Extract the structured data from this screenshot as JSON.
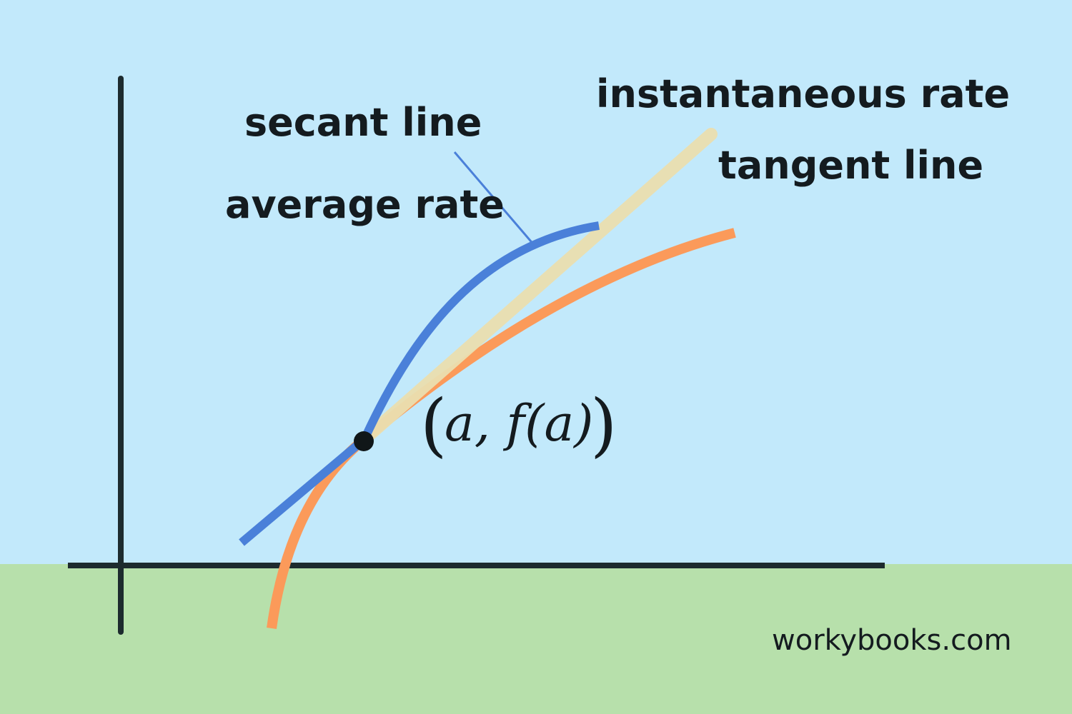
{
  "labels": {
    "secant": "secant line",
    "average": "average rate",
    "instantaneous": "instantaneous rate",
    "tangent": "tangent line",
    "point": "a, f(a)"
  },
  "footer": {
    "site": "workybooks.com"
  },
  "colors": {
    "sky": "#c2e9fb",
    "ground": "#b7e0ab",
    "axis": "#1d2b2e",
    "secant_curve": "#4a80d9",
    "function_curve": "#fb9a5a",
    "tangent_line": "#ebdfb0",
    "point": "#101618",
    "text": "#141b1f"
  },
  "icons": {
    "point_marker": "filled-circle"
  }
}
